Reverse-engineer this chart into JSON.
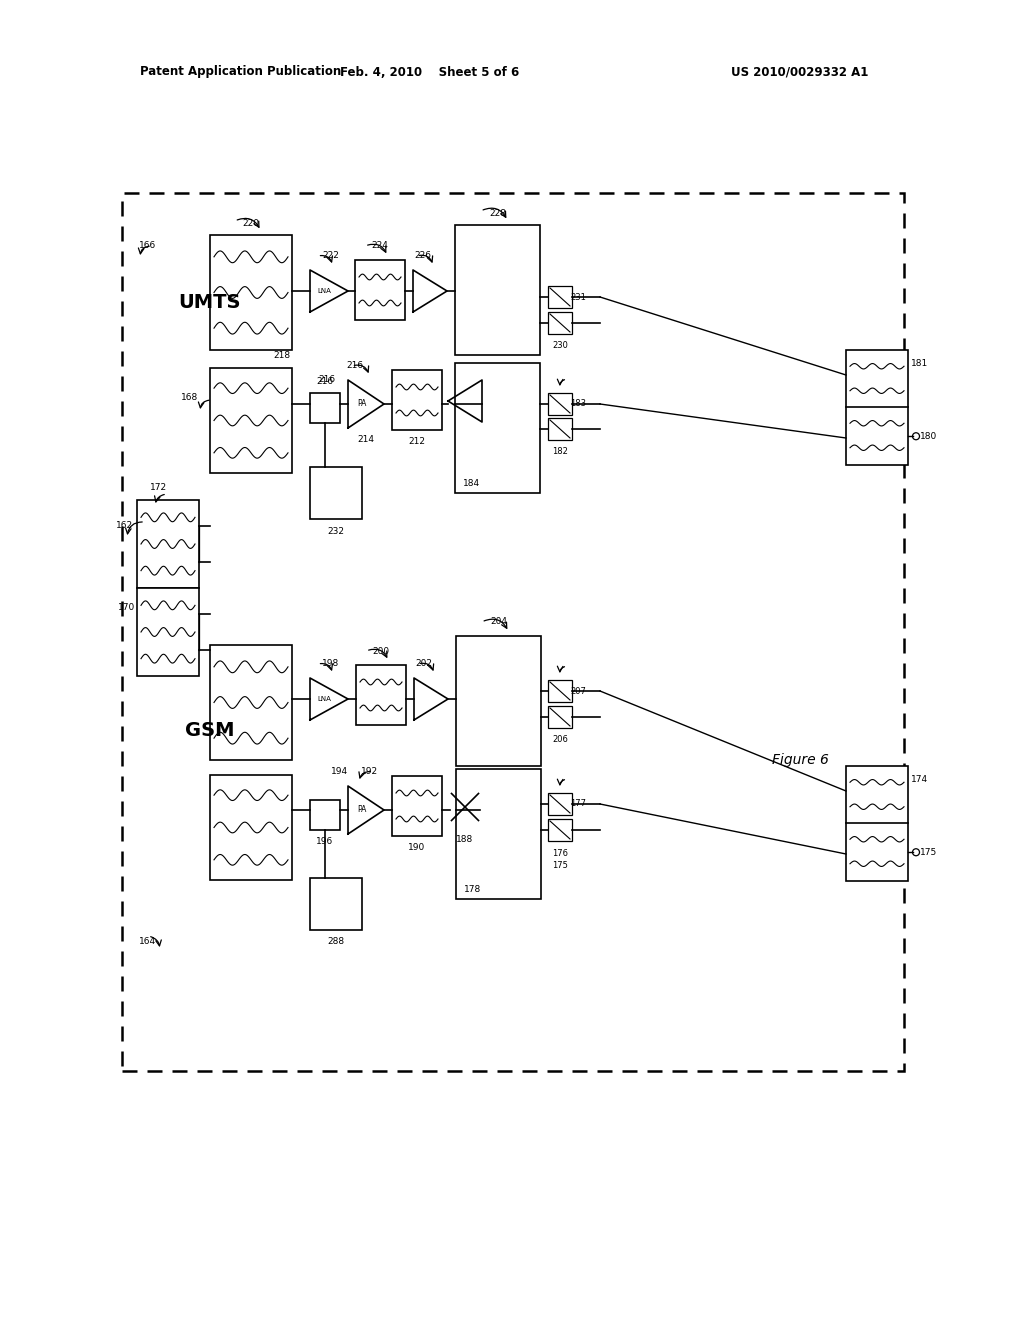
{
  "title_left": "Patent Application Publication",
  "title_mid": "Feb. 4, 2010    Sheet 5 of 6",
  "title_right": "US 2010/0029332 A1",
  "figure_label": "Figure 6",
  "bg_color": "#ffffff"
}
